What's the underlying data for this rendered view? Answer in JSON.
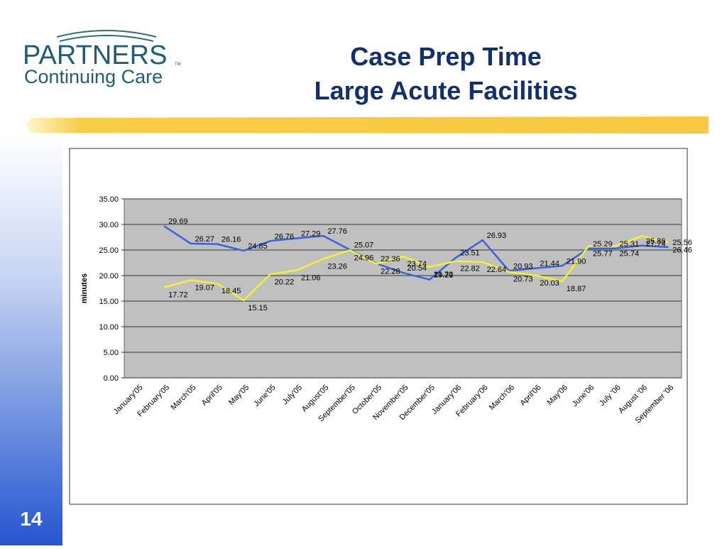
{
  "slide": {
    "logo_name": "PARTNERS",
    "logo_tm": "TM",
    "logo_sub": "Continuing Care",
    "page_number": "14"
  },
  "chart_data": {
    "type": "line",
    "title": "Case Prep Time",
    "subtitle": "Large Acute Facilities",
    "y_label": "minutes",
    "categories": [
      "January'05",
      "February'05",
      "March'05",
      "April'05",
      "May'05",
      "June'05",
      "July'05",
      "August'05",
      "September'05",
      "October'05",
      "November'05",
      "December'05",
      "January'06",
      "February'06",
      "March'06",
      "April'06",
      "May'06",
      "June'06",
      "July '06",
      "August '06",
      "September '06"
    ],
    "series": [
      {
        "color": "#3a62dc",
        "values": [
          null,
          29.69,
          26.27,
          26.16,
          24.85,
          26.76,
          27.29,
          27.76,
          25.07,
          22.36,
          20.54,
          19.21,
          23.51,
          26.93,
          20.93,
          21.44,
          21.9,
          25.29,
          25.31,
          25.86,
          25.56
        ],
        "value_labels": [
          null,
          "29.69",
          "26.27",
          "26.16",
          "24.85",
          "26.76",
          "27.29",
          "27.76",
          "25.07",
          "22.36",
          "20.54",
          "19.21",
          "23.51",
          "26.93",
          "20.93",
          "21.44",
          "21.90",
          "25.29",
          "25.31",
          "25.86",
          "25.56"
        ]
      },
      {
        "color": "#f5f032",
        "values": [
          null,
          17.72,
          19.07,
          18.45,
          15.15,
          20.22,
          21.06,
          23.26,
          24.96,
          22.28,
          23.74,
          21.7,
          22.82,
          22.64,
          20.73,
          20.03,
          18.87,
          25.77,
          25.74,
          27.74,
          26.46
        ],
        "value_labels": [
          null,
          "17.72",
          "19.07",
          "18.45",
          "15.15",
          "20.22",
          "21.06",
          "23.26",
          "24.96",
          "22.28",
          "23.74",
          "21.70",
          "22.82",
          "22.64",
          "20.73",
          "20.03",
          "18.87",
          "25.77",
          "25.74",
          "27.74",
          "26.46"
        ]
      }
    ],
    "ylim": [
      0,
      35
    ],
    "yticks": [
      {
        "value": 0,
        "label": "0.00"
      },
      {
        "value": 5,
        "label": "5.00"
      },
      {
        "value": 10,
        "label": "10.00"
      },
      {
        "value": 15,
        "label": "15.00"
      },
      {
        "value": 20,
        "label": "20.00"
      },
      {
        "value": 25,
        "label": "25.00"
      },
      {
        "value": 30,
        "label": "30.00"
      },
      {
        "value": 35,
        "label": "35.00"
      }
    ],
    "grid": true
  }
}
